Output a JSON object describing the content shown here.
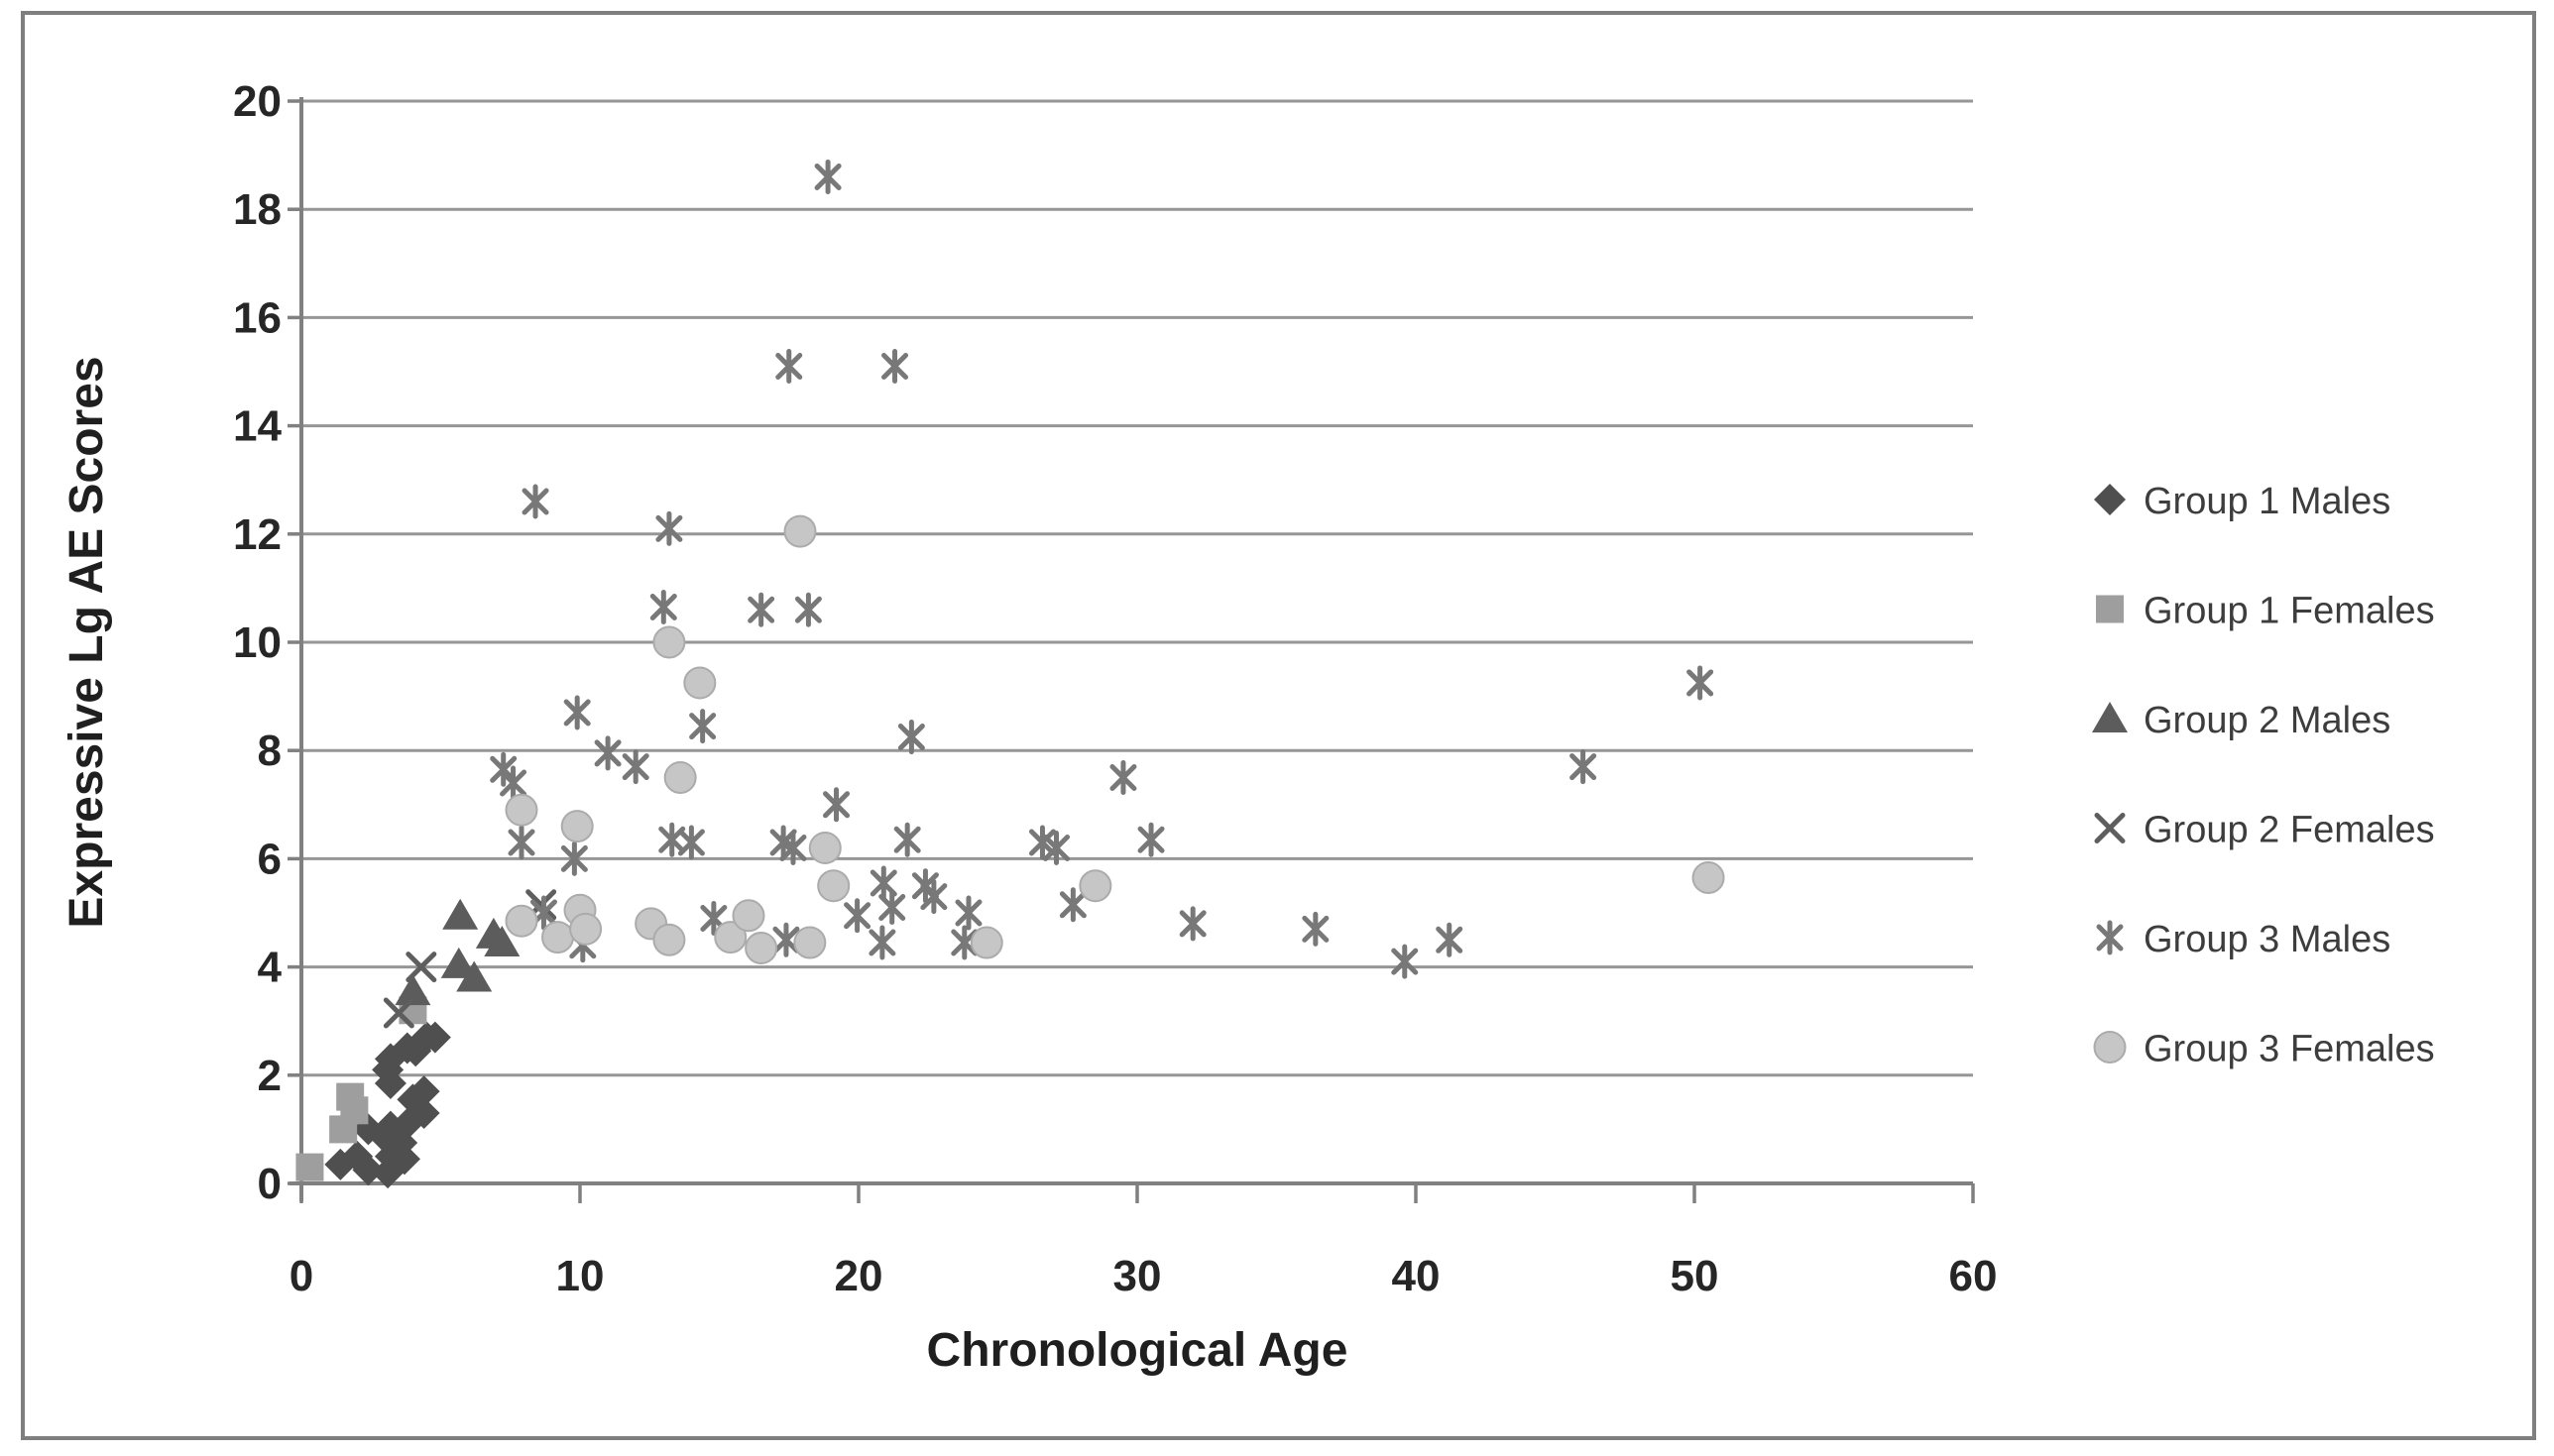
{
  "figure": {
    "background": "#ffffff",
    "border_color": "#7f7f7f",
    "gridline_color": "#969696",
    "axis_color": "#808080",
    "text_color": "#262626"
  },
  "chart_data": {
    "type": "scatter",
    "title": "",
    "xlabel": "Chronological Age",
    "ylabel": "Expressive Lg AE Scores",
    "xlim": [
      0,
      60
    ],
    "ylim": [
      0,
      20
    ],
    "xticks": [
      0,
      10,
      20,
      30,
      40,
      50,
      60
    ],
    "yticks": [
      0,
      2,
      4,
      6,
      8,
      10,
      12,
      14,
      16,
      18,
      20
    ],
    "grid": "horizontal-only",
    "legend_position": "right-middle",
    "series": [
      {
        "name": "Group 1 Males",
        "marker": "diamond",
        "color": "#4f4f4f",
        "points": [
          [
            1.4,
            0.35
          ],
          [
            2.0,
            0.5
          ],
          [
            2.4,
            0.25
          ],
          [
            2.4,
            1.0
          ],
          [
            3.0,
            0.85
          ],
          [
            3.1,
            0.2
          ],
          [
            3.2,
            0.5
          ],
          [
            3.2,
            1.05
          ],
          [
            3.6,
            0.75
          ],
          [
            3.7,
            0.45
          ],
          [
            3.8,
            1.1
          ],
          [
            4.0,
            1.55
          ],
          [
            4.4,
            1.3
          ],
          [
            4.4,
            1.7
          ],
          [
            3.2,
            1.85
          ],
          [
            3.1,
            2.1
          ],
          [
            3.2,
            2.3
          ],
          [
            3.8,
            2.5
          ],
          [
            4.1,
            2.45
          ],
          [
            4.5,
            2.7
          ],
          [
            4.8,
            2.7
          ]
        ]
      },
      {
        "name": "Group 1 Females",
        "marker": "square",
        "color": "#9e9e9e",
        "points": [
          [
            0.3,
            0.3
          ],
          [
            1.5,
            1.0
          ],
          [
            1.75,
            1.6
          ],
          [
            1.9,
            1.35
          ],
          [
            4.0,
            3.2
          ]
        ]
      },
      {
        "name": "Group 2 Males",
        "marker": "triangle",
        "color": "#5c5c5c",
        "points": [
          [
            4.0,
            3.55
          ],
          [
            5.65,
            4.05
          ],
          [
            6.2,
            3.8
          ],
          [
            5.7,
            4.95
          ],
          [
            6.9,
            4.6
          ],
          [
            7.2,
            4.45
          ]
        ]
      },
      {
        "name": "Group 2 Females",
        "marker": "x",
        "color": "#5e5e5e",
        "points": [
          [
            3.5,
            3.15
          ],
          [
            4.3,
            4.0
          ],
          [
            8.6,
            5.15
          ]
        ]
      },
      {
        "name": "Group 3 Males",
        "marker": "asterisk",
        "color": "#787878",
        "points": [
          [
            7.25,
            7.65
          ],
          [
            7.6,
            7.4
          ],
          [
            7.9,
            6.3
          ],
          [
            8.4,
            12.6
          ],
          [
            8.7,
            5.0
          ],
          [
            9.8,
            6.0
          ],
          [
            9.9,
            8.7
          ],
          [
            10.1,
            4.4
          ],
          [
            11.0,
            7.95
          ],
          [
            12.0,
            7.7
          ],
          [
            13.0,
            10.65
          ],
          [
            13.2,
            12.1
          ],
          [
            13.3,
            6.35
          ],
          [
            14.0,
            6.3
          ],
          [
            14.4,
            8.45
          ],
          [
            14.8,
            4.9
          ],
          [
            16.5,
            10.6
          ],
          [
            17.3,
            6.3
          ],
          [
            17.65,
            6.2
          ],
          [
            17.4,
            4.5
          ],
          [
            18.2,
            10.6
          ],
          [
            17.5,
            15.1
          ],
          [
            21.3,
            15.1
          ],
          [
            18.9,
            18.6
          ],
          [
            19.2,
            7.0
          ],
          [
            19.95,
            4.95
          ],
          [
            20.9,
            5.55
          ],
          [
            21.2,
            5.1
          ],
          [
            20.85,
            4.45
          ],
          [
            21.9,
            8.25
          ],
          [
            21.75,
            6.35
          ],
          [
            22.4,
            5.5
          ],
          [
            22.7,
            5.3
          ],
          [
            23.95,
            5.0
          ],
          [
            23.8,
            4.45
          ],
          [
            26.6,
            6.3
          ],
          [
            27.1,
            6.2
          ],
          [
            27.7,
            5.15
          ],
          [
            29.5,
            7.5
          ],
          [
            30.5,
            6.35
          ],
          [
            32.0,
            4.8
          ],
          [
            36.4,
            4.7
          ],
          [
            39.6,
            4.1
          ],
          [
            41.2,
            4.5
          ],
          [
            46.0,
            7.7
          ],
          [
            50.2,
            9.25
          ]
        ]
      },
      {
        "name": "Group 3 Females",
        "marker": "circle",
        "color": "#c6c6c6",
        "edge": "#ababab",
        "points": [
          [
            7.9,
            4.85
          ],
          [
            7.9,
            6.9
          ],
          [
            9.2,
            4.55
          ],
          [
            10.0,
            5.05
          ],
          [
            10.2,
            4.7
          ],
          [
            9.9,
            6.6
          ],
          [
            12.55,
            4.8
          ],
          [
            13.2,
            4.5
          ],
          [
            13.6,
            7.5
          ],
          [
            13.2,
            10.0
          ],
          [
            14.3,
            9.25
          ],
          [
            15.4,
            4.55
          ],
          [
            16.05,
            4.95
          ],
          [
            16.5,
            4.35
          ],
          [
            18.25,
            4.45
          ],
          [
            17.9,
            12.05
          ],
          [
            18.8,
            6.2
          ],
          [
            19.1,
            5.5
          ],
          [
            24.6,
            4.45
          ],
          [
            28.5,
            5.5
          ],
          [
            50.5,
            5.65
          ]
        ]
      }
    ]
  }
}
